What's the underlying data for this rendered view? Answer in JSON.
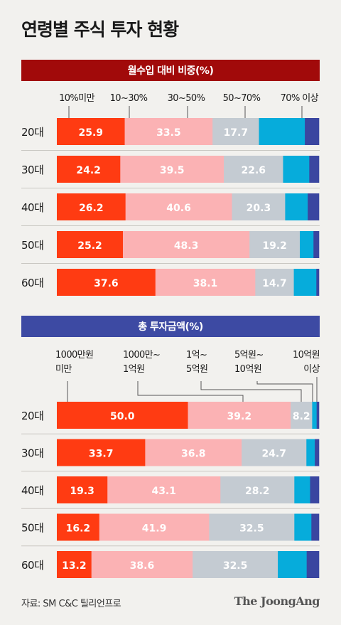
{
  "title": "연령별 주식 투자 현황",
  "source": "자료: SM C&C 틸리언프로",
  "brand": "The JoongAng",
  "colors": [
    "#ff3b12",
    "#fbb2b4",
    "#c4cbd2",
    "#06acdb",
    "#3a46a0"
  ],
  "chart_data": [
    {
      "type": "bar",
      "orientation": "horizontal",
      "stacked": true,
      "title": "월수입 대비 비중(%)",
      "categories": [
        "20대",
        "30대",
        "40대",
        "50대",
        "60대"
      ],
      "legend": [
        "10%미만",
        "10~30%",
        "30~50%",
        "50~70%",
        "70% 이상"
      ],
      "series": [
        {
          "name": "10%미만",
          "values": [
            25.9,
            24.2,
            26.2,
            25.2,
            37.6
          ]
        },
        {
          "name": "10~30%",
          "values": [
            33.5,
            39.5,
            40.6,
            48.3,
            38.1
          ]
        },
        {
          "name": "30~50%",
          "values": [
            17.7,
            22.6,
            20.3,
            19.2,
            14.7
          ]
        },
        {
          "name": "50~70%",
          "values": [
            17.5,
            10.0,
            8.6,
            5.2,
            8.6
          ]
        },
        {
          "name": "70% 이상",
          "values": [
            5.4,
            3.7,
            4.3,
            2.1,
            1.0
          ]
        }
      ],
      "labeled_series": 3
    },
    {
      "type": "bar",
      "orientation": "horizontal",
      "stacked": true,
      "title": "총 투자금액(%)",
      "categories": [
        "20대",
        "30대",
        "40대",
        "50대",
        "60대"
      ],
      "legend": [
        "1000만원\n미만",
        "1000만~\n1억원",
        "1억~\n5억원",
        "5억원~\n10억원",
        "10억원\n이상"
      ],
      "series": [
        {
          "name": "1000만원 미만",
          "values": [
            50.0,
            33.7,
            19.3,
            16.2,
            13.2
          ]
        },
        {
          "name": "1000만~1억원",
          "values": [
            39.2,
            36.8,
            43.1,
            41.9,
            38.6
          ]
        },
        {
          "name": "1억~5억원",
          "values": [
            8.2,
            24.7,
            28.2,
            32.5,
            32.5
          ]
        },
        {
          "name": "5억원~10억원",
          "values": [
            1.7,
            3.2,
            6.0,
            6.5,
            11.0
          ]
        },
        {
          "name": "10억원 이상",
          "values": [
            0.9,
            1.6,
            3.4,
            2.9,
            4.7
          ]
        }
      ],
      "labeled_series": 3
    }
  ]
}
